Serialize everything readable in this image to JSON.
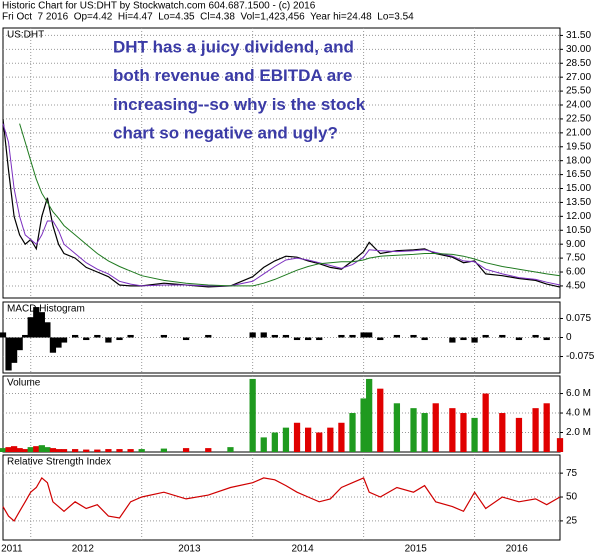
{
  "header": {
    "title": "Historic Chart for US:DHT by Stockwatch.com 604.687.1500 - (c) 2016",
    "info": "Fri Oct  7 2016  Op=4.42  Hi=4.47  Lo=4.35  Cl=4.38  Vol=1,423,456  Year hi=24.48  Lo=3.54"
  },
  "chart_data": [
    {
      "type": "line",
      "title": "US:DHT",
      "annotation": [
        "DHT has a juicy dividend, and",
        "both revenue and EBITDA are",
        "increasing--so why is the stock",
        "chart so negative and ugly?"
      ],
      "annotation_color": "#3b3ba6",
      "x": [
        2011.75,
        2011.8,
        2011.85,
        2011.9,
        2011.95,
        2012.0,
        2012.05,
        2012.1,
        2012.15,
        2012.2,
        2012.25,
        2012.3,
        2012.4,
        2012.5,
        2012.6,
        2012.7,
        2012.8,
        2012.9,
        2013.0,
        2013.2,
        2013.4,
        2013.6,
        2013.8,
        2014.0,
        2014.1,
        2014.2,
        2014.3,
        2014.4,
        2014.5,
        2014.6,
        2014.7,
        2014.8,
        2014.9,
        2015.0,
        2015.05,
        2015.15,
        2015.3,
        2015.45,
        2015.55,
        2015.65,
        2015.8,
        2015.9,
        2016.0,
        2016.1,
        2016.25,
        2016.4,
        2016.55,
        2016.65,
        2016.77
      ],
      "series": [
        {
          "color": "#000000",
          "values": [
            22.5,
            17,
            12,
            10,
            9,
            9.5,
            8.5,
            12,
            14,
            11,
            9,
            8,
            7.5,
            6.5,
            6,
            5.5,
            4.6,
            4.5,
            4.5,
            4.8,
            4.6,
            4.4,
            4.5,
            5.5,
            6.5,
            7.2,
            7.7,
            7.6,
            7.2,
            6.9,
            6.5,
            6.3,
            7.2,
            8.2,
            9.2,
            8.0,
            8.3,
            8.4,
            8.5,
            8.0,
            7.6,
            7.0,
            7.2,
            5.8,
            5.6,
            5.3,
            5.1,
            4.7,
            4.38
          ]
        },
        {
          "color": "#7b2fbf",
          "values": [
            22,
            20,
            15,
            12,
            10,
            9.5,
            9,
            10,
            11.5,
            11.5,
            10.5,
            9,
            8,
            7,
            6.3,
            5.8,
            5,
            4.7,
            4.5,
            4.6,
            4.6,
            4.5,
            4.5,
            5.0,
            5.8,
            6.6,
            7.3,
            7.5,
            7.3,
            7.0,
            6.7,
            6.4,
            6.8,
            7.6,
            8.4,
            8.3,
            8.2,
            8.3,
            8.4,
            8.1,
            7.7,
            7.2,
            7.1,
            6.3,
            5.8,
            5.4,
            5.2,
            4.9,
            4.6
          ]
        },
        {
          "color": "#1f7a1f",
          "values": [
            null,
            null,
            null,
            22,
            20,
            18,
            16,
            14.5,
            13.5,
            12.5,
            11.8,
            11,
            10,
            9,
            8,
            7.2,
            6.6,
            6.1,
            5.6,
            5.1,
            4.8,
            4.6,
            4.5,
            4.5,
            4.8,
            5.2,
            5.7,
            6.2,
            6.6,
            6.9,
            7.0,
            7.1,
            7.1,
            7.3,
            7.5,
            7.7,
            7.8,
            7.9,
            8.0,
            8.0,
            7.9,
            7.7,
            7.4,
            7.0,
            6.6,
            6.3,
            6.0,
            5.8,
            5.6
          ]
        }
      ],
      "xlim": [
        2011.75,
        2016.77
      ],
      "xgrid": [
        2012,
        2013,
        2014,
        2015,
        2016
      ],
      "ylim": [
        3.2,
        32.3
      ],
      "yticks": [
        {
          "value": 31.5,
          "label": "31.50"
        },
        {
          "value": 30,
          "label": "30.00"
        },
        {
          "value": 28.5,
          "label": "28.50"
        },
        {
          "value": 27,
          "label": "27.00"
        },
        {
          "value": 25.5,
          "label": "25.50"
        },
        {
          "value": 24,
          "label": "24.00"
        },
        {
          "value": 22.5,
          "label": "22.50"
        },
        {
          "value": 21,
          "label": "21.00"
        },
        {
          "value": 19.5,
          "label": "19.50"
        },
        {
          "value": 18,
          "label": "18.00"
        },
        {
          "value": 16.5,
          "label": "16.50"
        },
        {
          "value": 15,
          "label": "15.00"
        },
        {
          "value": 13.5,
          "label": "13.50"
        },
        {
          "value": 12,
          "label": "12.00"
        },
        {
          "value": 10.5,
          "label": "10.50"
        },
        {
          "value": 9,
          "label": "9.00"
        },
        {
          "value": 7.5,
          "label": "7.50"
        },
        {
          "value": 6,
          "label": "6.00"
        },
        {
          "value": 4.5,
          "label": "4.50"
        }
      ],
      "grid": true
    },
    {
      "type": "bar",
      "title": "MACD Histogram",
      "color": "#000000",
      "x": [
        2011.75,
        2011.8,
        2011.85,
        2011.9,
        2011.95,
        2012.0,
        2012.05,
        2012.1,
        2012.15,
        2012.2,
        2012.25,
        2012.3,
        2012.4,
        2012.5,
        2012.6,
        2012.7,
        2012.8,
        2012.9,
        2013.0,
        2013.2,
        2013.4,
        2013.6,
        2013.8,
        2014.0,
        2014.1,
        2014.2,
        2014.3,
        2014.4,
        2014.5,
        2014.6,
        2014.7,
        2014.8,
        2014.9,
        2015.0,
        2015.05,
        2015.15,
        2015.3,
        2015.45,
        2015.55,
        2015.65,
        2015.8,
        2015.9,
        2016.0,
        2016.1,
        2016.25,
        2016.4,
        2016.55,
        2016.65,
        2016.77
      ],
      "values": [
        0.02,
        -0.13,
        -0.1,
        -0.05,
        0.01,
        0.08,
        0.12,
        0.1,
        0.06,
        -0.06,
        -0.04,
        -0.02,
        0.01,
        -0.01,
        0.01,
        -0.02,
        -0.01,
        0.01,
        0,
        0.01,
        -0.01,
        0.01,
        0,
        0.02,
        0.02,
        0.01,
        0.01,
        -0.01,
        -0.01,
        -0.01,
        0,
        0.01,
        0.01,
        0.02,
        0.02,
        -0.01,
        0.01,
        0.01,
        -0.01,
        0,
        -0.02,
        -0.01,
        -0.02,
        0.01,
        0.01,
        -0.01,
        0.01,
        -0.01,
        0
      ],
      "xlim": [
        2011.75,
        2016.77
      ],
      "xgrid": [
        2012,
        2013,
        2014,
        2015,
        2016
      ],
      "ylim": [
        -0.14,
        0.14
      ],
      "yticks": [
        0.075,
        0,
        -0.075
      ],
      "grid": true
    },
    {
      "type": "bar",
      "title": "Volume",
      "up_color": "#1f9a1f",
      "down_color": "#e00000",
      "x": [
        2011.75,
        2011.8,
        2011.85,
        2011.9,
        2011.95,
        2012.0,
        2012.05,
        2012.1,
        2012.15,
        2012.2,
        2012.25,
        2012.3,
        2012.4,
        2012.5,
        2012.6,
        2012.7,
        2012.8,
        2012.9,
        2013.0,
        2013.2,
        2013.4,
        2013.6,
        2013.8,
        2014.0,
        2014.1,
        2014.2,
        2014.3,
        2014.4,
        2014.5,
        2014.6,
        2014.7,
        2014.8,
        2014.9,
        2015.0,
        2015.05,
        2015.15,
        2015.3,
        2015.45,
        2015.55,
        2015.65,
        2015.8,
        2015.9,
        2016.0,
        2016.1,
        2016.25,
        2016.4,
        2016.55,
        2016.65,
        2016.77
      ],
      "values": [
        400000,
        500000,
        600000,
        400000,
        300000,
        500000,
        600000,
        700000,
        500000,
        400000,
        300000,
        300000,
        300000,
        250000,
        250000,
        300000,
        300000,
        300000,
        300000,
        350000,
        400000,
        400000,
        500000,
        7500000,
        1500000,
        2000000,
        2500000,
        3000000,
        2500000,
        2000000,
        2500000,
        3000000,
        4000000,
        5500000,
        7500000,
        6500000,
        5000000,
        4500000,
        4000000,
        5000000,
        4500000,
        4000000,
        3500000,
        6000000,
        4000000,
        3500000,
        4500000,
        5000000,
        1423456
      ],
      "xlim": [
        2011.75,
        2016.77
      ],
      "xgrid": [
        2012,
        2013,
        2014,
        2015,
        2016
      ],
      "ylim": [
        0,
        7800000
      ],
      "yticks": [
        {
          "value": 6000000,
          "label": "6.0 M"
        },
        {
          "value": 4000000,
          "label": "4.0 M"
        },
        {
          "value": 2000000,
          "label": "2.0 M"
        }
      ],
      "grid": true
    },
    {
      "type": "line",
      "title": "Relative Strength Index",
      "color": "#d00000",
      "x": [
        2011.75,
        2011.8,
        2011.85,
        2011.9,
        2011.95,
        2012.0,
        2012.05,
        2012.1,
        2012.15,
        2012.2,
        2012.25,
        2012.3,
        2012.4,
        2012.5,
        2012.6,
        2012.7,
        2012.8,
        2012.9,
        2013.0,
        2013.2,
        2013.4,
        2013.6,
        2013.8,
        2014.0,
        2014.1,
        2014.2,
        2014.3,
        2014.4,
        2014.5,
        2014.6,
        2014.7,
        2014.8,
        2014.9,
        2015.0,
        2015.05,
        2015.15,
        2015.3,
        2015.45,
        2015.55,
        2015.65,
        2015.8,
        2015.9,
        2016.0,
        2016.1,
        2016.25,
        2016.4,
        2016.55,
        2016.65,
        2016.77
      ],
      "values": [
        40,
        30,
        25,
        35,
        45,
        55,
        60,
        70,
        65,
        45,
        40,
        35,
        45,
        38,
        42,
        30,
        28,
        45,
        50,
        55,
        48,
        52,
        60,
        65,
        70,
        68,
        62,
        55,
        50,
        45,
        48,
        60,
        65,
        70,
        55,
        50,
        60,
        55,
        62,
        45,
        40,
        35,
        55,
        38,
        50,
        45,
        48,
        42,
        50
      ],
      "xlim": [
        2011.75,
        2016.77
      ],
      "xgrid": [
        2012,
        2013,
        2014,
        2015,
        2016
      ],
      "ylim": [
        5,
        94
      ],
      "yticks": [
        75,
        50,
        25
      ],
      "grid": true,
      "xticks": [
        {
          "value": 2011.83,
          "label": "2011"
        },
        {
          "value": 2012.47,
          "label": "2012"
        },
        {
          "value": 2013.43,
          "label": "2013"
        },
        {
          "value": 2014.45,
          "label": "2014"
        },
        {
          "value": 2015.47,
          "label": "2015"
        },
        {
          "value": 2016.38,
          "label": "2016"
        }
      ]
    }
  ]
}
